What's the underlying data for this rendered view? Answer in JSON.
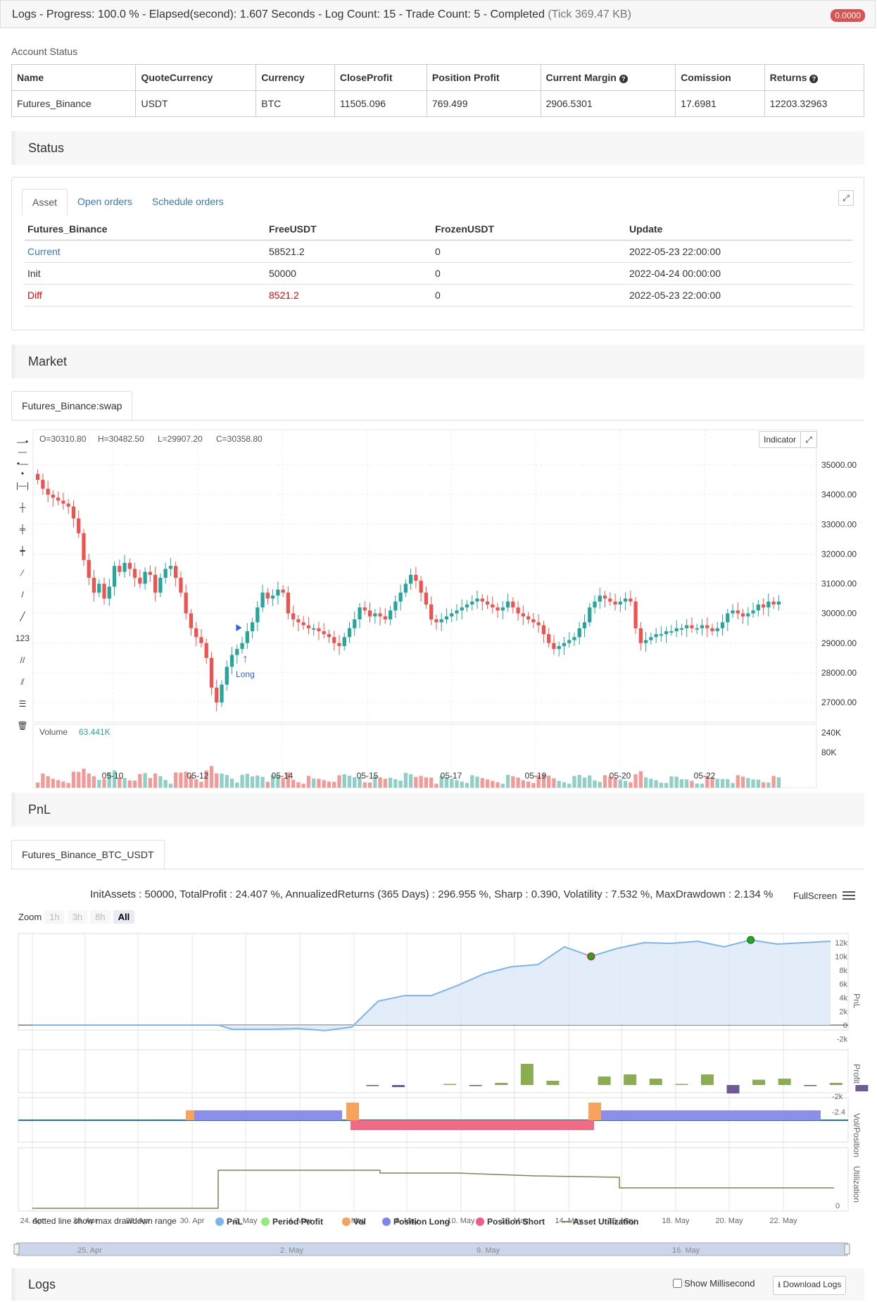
{
  "topbar": {
    "title": "Logs - Progress: 100.0 % - Elapsed(second): 1.607 Seconds - Log Count: 15 - Trade Count: 5 - Completed",
    "tick": "(Tick 369.47 KB)",
    "badge": "0.0000"
  },
  "account": {
    "label": "Account Status",
    "headers": [
      "Name",
      "QuoteCurrency",
      "Currency",
      "CloseProfit",
      "Position Profit",
      "Current Margin",
      "Comission",
      "Returns"
    ],
    "row": [
      "Futures_Binance",
      "USDT",
      "BTC",
      "11505.096",
      "769.499",
      "2906.5301",
      "17.6981",
      "12203.32963"
    ]
  },
  "status": {
    "title": "Status",
    "tabs": [
      "Asset",
      "Open orders",
      "Schedule orders"
    ],
    "headers": [
      "Futures_Binance",
      "FreeUSDT",
      "FrozenUSDT",
      "Update"
    ],
    "rows": [
      [
        "Current",
        "58521.2",
        "0",
        "2022-05-23 22:00:00"
      ],
      [
        "Init",
        "50000",
        "0",
        "2022-04-24 00:00:00"
      ],
      [
        "Diff",
        "8521.2",
        "0",
        "2022-05-23 22:00:00"
      ]
    ]
  },
  "market": {
    "title": "Market",
    "tab": "Futures_Binance:swap",
    "ohlc": {
      "o": "O=30310.80",
      "h": "H=30482.50",
      "l": "L=29907.20",
      "c": "C=30358.80"
    },
    "indicator_btn": "Indicator",
    "volume_label": "Volume",
    "volume_value": "63.441K",
    "marker": "Long"
  },
  "chart_data": [
    {
      "type": "candlestick",
      "y_ticks": [
        "35000.00",
        "34000.00",
        "33000.00",
        "32000.00",
        "31000.00",
        "30000.00",
        "29000.00",
        "28000.00",
        "27000.00"
      ],
      "x_ticks": [
        "05-10",
        "05-12",
        "05-14",
        "05-15",
        "05-17",
        "05-19",
        "05-20",
        "05-22"
      ],
      "volume_ticks": [
        "240K",
        "80K"
      ],
      "close": [
        34500,
        34200,
        34000,
        33900,
        33800,
        33700,
        33600,
        33200,
        32700,
        31800,
        31200,
        30700,
        31000,
        30500,
        30900,
        31600,
        31400,
        31700,
        31500,
        31200,
        31000,
        31400,
        31300,
        30700,
        31200,
        31500,
        31600,
        31200,
        30700,
        30000,
        29500,
        29200,
        29000,
        28500,
        27500,
        27000,
        27600,
        28200,
        28600,
        28800,
        29000,
        29400,
        29700,
        30200,
        30700,
        30500,
        30600,
        30800,
        30700,
        30000,
        29800,
        29700,
        29600,
        29500,
        29500,
        29400,
        29300,
        29200,
        29000,
        28900,
        29200,
        29500,
        29800,
        30200,
        30100,
        29900,
        30000,
        29900,
        29800,
        30100,
        30400,
        30700,
        31000,
        31300,
        31100,
        30700,
        30300,
        29800,
        29700,
        29800,
        29900,
        30000,
        30100,
        30200,
        30300,
        30400,
        30500,
        30400,
        30300,
        30200,
        30100,
        30200,
        30400,
        30200,
        30000,
        29900,
        29800,
        29700,
        29600,
        29300,
        29000,
        28800,
        28900,
        29000,
        29100,
        29200,
        29500,
        29700,
        30200,
        30400,
        30600,
        30500,
        30400,
        30300,
        30400,
        30500,
        30400,
        29500,
        29000,
        29100,
        29200,
        29300,
        29300,
        29400,
        29400,
        29500,
        29500,
        29600,
        29500,
        29500,
        29600,
        29500,
        29400,
        29500,
        29700,
        30000,
        30100,
        30000,
        29900,
        30000,
        30100,
        30300,
        30200,
        30400,
        30300,
        30400
      ],
      "marker": {
        "label": "Long",
        "index": 40
      }
    },
    {
      "type": "line",
      "title": "PnL",
      "summary": "InitAssets : 50000, TotalProfit : 24.407 %, AnnualizedReturns (365 Days) : 296.955 %, Sharp : 0.390, Volatility : 7.532 %, MaxDrawdown : 2.134 %",
      "y_ticks": [
        "12k",
        "10k",
        "8k",
        "6k",
        "4k",
        "2k",
        "0",
        "-2k"
      ],
      "x_ticks": [
        "24. Apr",
        "26. Apr",
        "28. Apr",
        "30. Apr",
        "2. May",
        "4. May",
        "6. May",
        "8. May",
        "10. May",
        "12. May",
        "14. May",
        "16. May",
        "18. May",
        "20. May",
        "22. May"
      ],
      "navigator_ticks": [
        "25. Apr",
        "2. May",
        "9. May",
        "16. May"
      ],
      "pnl": [
        [
          0,
          0
        ],
        [
          7,
          0
        ],
        [
          7.5,
          -600
        ],
        [
          9,
          -600
        ],
        [
          10,
          -500
        ],
        [
          11,
          -800
        ],
        [
          12,
          -300
        ],
        [
          13,
          3500
        ],
        [
          14,
          4300
        ],
        [
          15,
          4300
        ],
        [
          16,
          5800
        ],
        [
          17,
          7500
        ],
        [
          18,
          8500
        ],
        [
          19,
          8800
        ],
        [
          20,
          11400
        ],
        [
          21,
          10000
        ],
        [
          22,
          11200
        ],
        [
          23,
          12000
        ],
        [
          24,
          11900
        ],
        [
          25,
          12200
        ],
        [
          26,
          11400
        ],
        [
          27,
          12400
        ],
        [
          28,
          11800
        ],
        [
          29,
          12000
        ],
        [
          30,
          12200
        ]
      ],
      "profit_axis": {
        "label": "Profit",
        "ticks": [
          "-2k"
        ]
      },
      "vol_axis": {
        "label": "Vol/Position",
        "ticks": [
          "-2.4"
        ]
      },
      "util_axis": {
        "label": "Utilization",
        "ticks": [
          "0"
        ]
      },
      "legend": [
        "PnL",
        "Period Profit",
        "Vol",
        "Position Long",
        "Position Short",
        "Asset Utilization"
      ],
      "legend_colors": [
        "#7cb5ec",
        "#90ed7d",
        "#f7a35c",
        "#8085e9",
        "#f15c80",
        "#8d7f4f"
      ],
      "note": "dotted line show max drawdown range"
    }
  ],
  "pnl": {
    "title": "PnL",
    "tab": "Futures_Binance_BTC_USDT",
    "fullscreen": "FullScreen",
    "zoom_label": "Zoom",
    "zoom_buttons": [
      "1h",
      "3h",
      "8h",
      "All"
    ]
  },
  "logs": {
    "title": "Logs",
    "show_ms": "Show Millisecond",
    "download": "Download Logs"
  }
}
